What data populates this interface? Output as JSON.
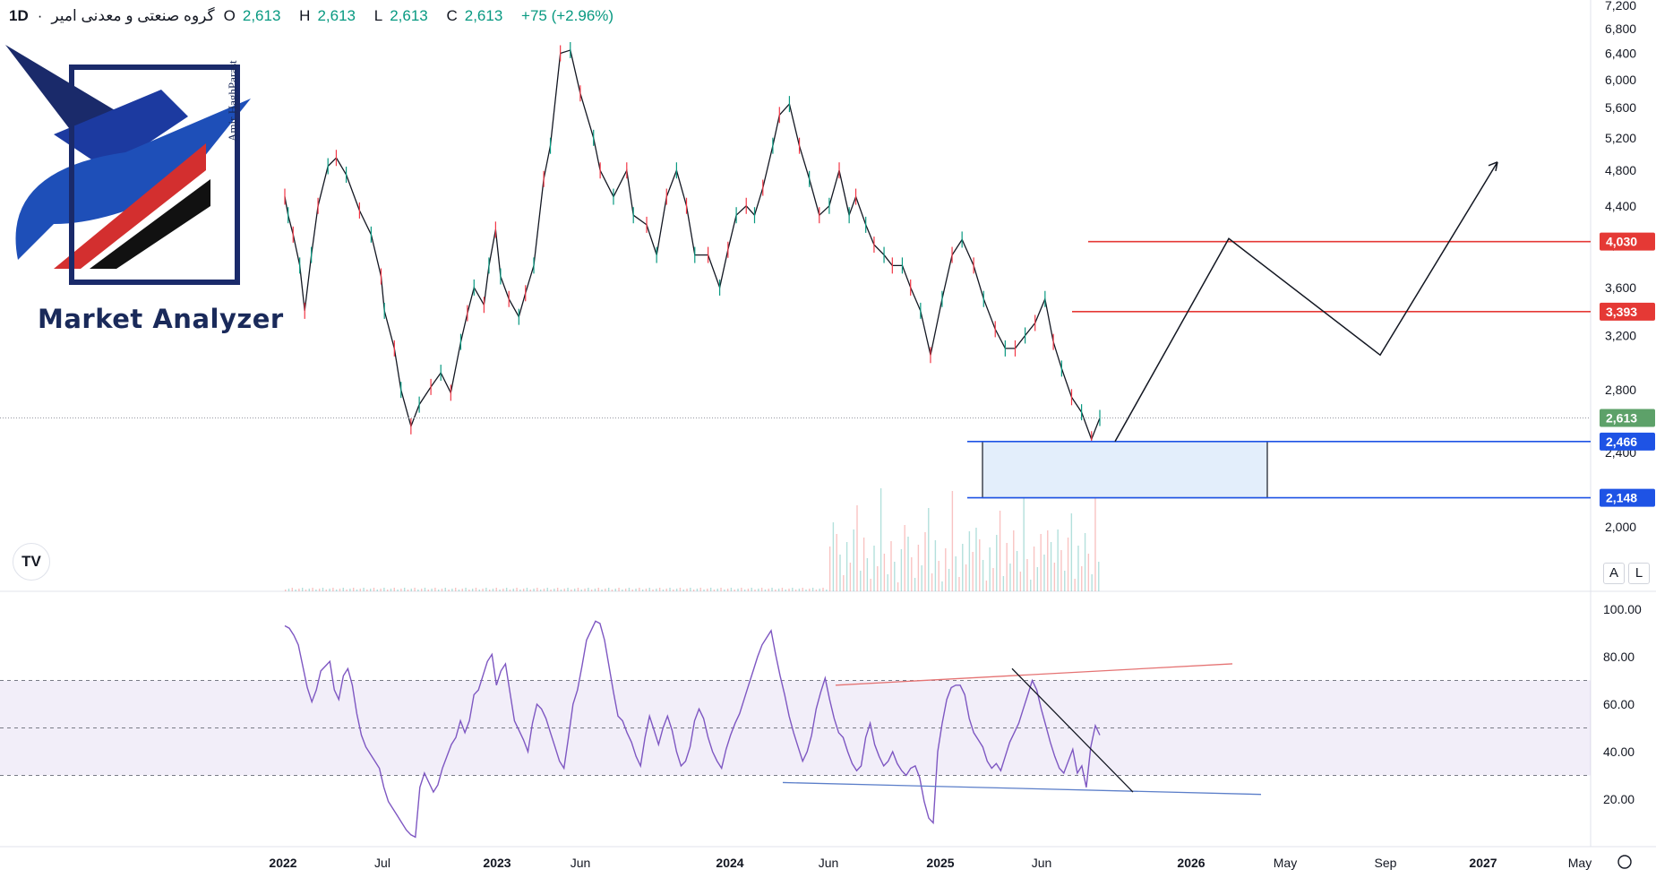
{
  "header": {
    "symbol": "گروه صنعتی و معدنی امیر",
    "separator": "·",
    "timeframe": "1D",
    "open_label": "O",
    "open": "2,613",
    "high_label": "H",
    "high": "2,613",
    "low_label": "L",
    "low": "2,613",
    "close_label": "C",
    "close": "2,613",
    "change": "+75 (+2.96%)"
  },
  "watermark": {
    "title": "Market Analyzer",
    "author": "Amir HaghParast"
  },
  "buttons": {
    "auto": "A",
    "log": "L"
  },
  "chart_data": [
    {
      "type": "line",
      "name": "price",
      "x_ticks": [
        "2022",
        "Jul",
        "2023",
        "Jun",
        "2024",
        "Jun",
        "2025",
        "Jun",
        "2026",
        "May",
        "Sep",
        "2027",
        "May"
      ],
      "y_ticks": [
        "7,200",
        "6,800",
        "6,400",
        "6,000",
        "5,600",
        "5,200",
        "4,800",
        "4,400",
        "4,000",
        "3,600",
        "3,200",
        "2,800",
        "2,400",
        "2,000"
      ],
      "ylim": [
        1500,
        7200
      ],
      "series": [
        {
          "t": [
            0,
            2,
            5,
            9,
            12,
            16,
            20,
            26,
            31,
            37,
            45,
            52,
            58,
            60,
            66,
            70,
            76,
            81,
            88,
            94,
            100,
            106,
            110,
            114,
            120,
            123,
            127,
            130,
            135,
            141,
            145,
            150,
            156,
            160,
            166,
            172,
            178,
            186,
            190,
            198,
            206,
            210,
            218,
            224,
            230,
            236,
            242,
            247,
            255,
            262,
            267,
            272,
            278,
            283,
            288,
            294,
            298,
            304,
            310,
            316,
            322,
            328,
            334,
            340,
            344,
            350,
            355,
            361,
            366,
            372,
            377,
            383,
            389,
            396,
            402,
            408,
            415,
            421,
            428,
            434,
            440,
            446,
            452,
            458,
            463,
            468,
            474,
            480,
            486,
            491
          ],
          "values": [
            4500,
            4300,
            4100,
            3800,
            3400,
            3900,
            4400,
            4850,
            4950,
            4750,
            4350,
            4100,
            3700,
            3400,
            3100,
            2800,
            2560,
            2700,
            2820,
            2920,
            2780,
            3150,
            3380,
            3600,
            3450,
            3800,
            4150,
            3700,
            3500,
            3350,
            3550,
            3800,
            4700,
            5100,
            6400,
            6450,
            5800,
            5200,
            4800,
            4500,
            4800,
            4300,
            4200,
            3900,
            4500,
            4800,
            4400,
            3900,
            3900,
            3600,
            3950,
            4300,
            4400,
            4300,
            4600,
            5100,
            5500,
            5650,
            5100,
            4700,
            4300,
            4400,
            4800,
            4300,
            4500,
            4200,
            4000,
            3900,
            3800,
            3800,
            3600,
            3400,
            3050,
            3500,
            3900,
            4050,
            3800,
            3500,
            3250,
            3100,
            3100,
            3200,
            3300,
            3500,
            3150,
            2950,
            2750,
            2650,
            2480,
            2613
          ]
        }
      ],
      "levels": [
        {
          "value": 4030,
          "label": "4,030",
          "color": "#e53935"
        },
        {
          "value": 3393,
          "label": "3,393",
          "color": "#e53935"
        },
        {
          "value": 2613,
          "label": "2,613",
          "color": "#5da169"
        },
        {
          "value": 2466,
          "label": "2,466",
          "color": "#1e53e5"
        },
        {
          "value": 2148,
          "label": "2,148",
          "color": "#1e53e5"
        }
      ],
      "projection": [
        2466,
        4060,
        3050,
        4900
      ]
    },
    {
      "type": "line",
      "name": "RSI",
      "y_ticks": [
        "100.00",
        "80.00",
        "60.00",
        "40.00",
        "20.00"
      ],
      "ylim": [
        0,
        100
      ],
      "bands": [
        70,
        50,
        30
      ],
      "series": [
        {
          "values": [
            93,
            92,
            89,
            85,
            76,
            67,
            61,
            66,
            74,
            76,
            78,
            66,
            62,
            72,
            75,
            68,
            56,
            47,
            42,
            39,
            36,
            33,
            25,
            19,
            16,
            13,
            10,
            7,
            5,
            4,
            25,
            31,
            27,
            23,
            26,
            33,
            38,
            43,
            46,
            53,
            48,
            53,
            64,
            66,
            72,
            78,
            81,
            68,
            74,
            77,
            65,
            53,
            49,
            45,
            40,
            52,
            60,
            58,
            54,
            48,
            42,
            36,
            33,
            46,
            60,
            66,
            76,
            87,
            91,
            95,
            94,
            87,
            76,
            65,
            55,
            53,
            48,
            44,
            38,
            34,
            46,
            55,
            49,
            43,
            50,
            55,
            49,
            40,
            34,
            36,
            42,
            53,
            58,
            54,
            46,
            40,
            36,
            33,
            41,
            47,
            52,
            56,
            62,
            68,
            74,
            80,
            85,
            88,
            91,
            81,
            72,
            64,
            55,
            48,
            42,
            36,
            40,
            47,
            58,
            65,
            71,
            62,
            54,
            48,
            46,
            40,
            35,
            32,
            34,
            46,
            52,
            43,
            38,
            34,
            36,
            40,
            35,
            32,
            30,
            33,
            34,
            29,
            19,
            12,
            10,
            40,
            52,
            62,
            67,
            68,
            68,
            64,
            54,
            48,
            45,
            42,
            36,
            33,
            35,
            32,
            38,
            44,
            48,
            52,
            58,
            64,
            70,
            66,
            58,
            51,
            44,
            38,
            33,
            31,
            36,
            41,
            31,
            34,
            25,
            42,
            51,
            47
          ],
          "t_start": 0,
          "t_end": 491
        }
      ]
    }
  ]
}
